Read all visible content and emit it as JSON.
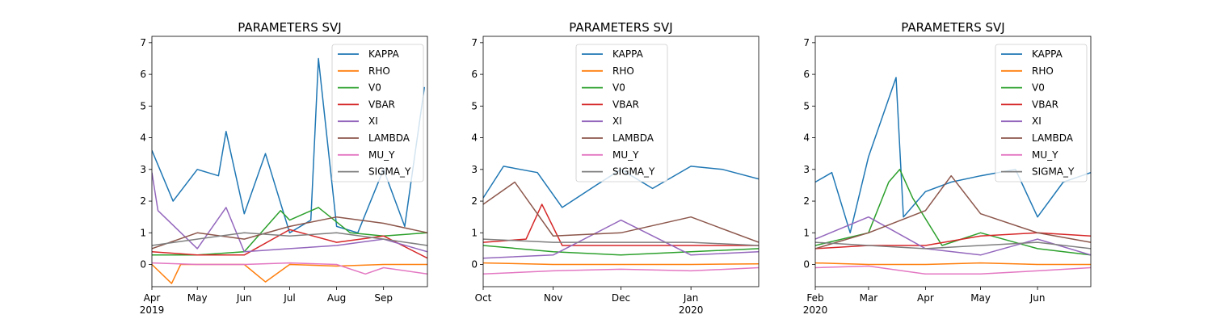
{
  "chart_data": [
    {
      "type": "line",
      "title": "PARAMETERS SVJ",
      "x_range": [
        "2019-04-01",
        "2019-09-30"
      ],
      "ylim": [
        -0.7,
        7.2
      ],
      "y_ticks": [
        0,
        1,
        2,
        3,
        4,
        5,
        6,
        7
      ],
      "x_ticks": [
        {
          "label": "Apr",
          "sub": "2019",
          "date": "2019-04-01"
        },
        {
          "label": "May",
          "sub": "",
          "date": "2019-05-01"
        },
        {
          "label": "Jun",
          "sub": "",
          "date": "2019-06-01"
        },
        {
          "label": "Jul",
          "sub": "",
          "date": "2019-07-01"
        },
        {
          "label": "Aug",
          "sub": "",
          "date": "2019-08-01"
        },
        {
          "label": "Sep",
          "sub": "",
          "date": "2019-09-01"
        }
      ],
      "legend_position": "upper-right",
      "grid": false,
      "series": [
        {
          "name": "KAPPA",
          "color": "#1f77b4",
          "x": [
            "2019-04-01",
            "2019-04-15",
            "2019-05-01",
            "2019-05-15",
            "2019-05-20",
            "2019-06-01",
            "2019-06-15",
            "2019-07-01",
            "2019-07-15",
            "2019-07-20",
            "2019-08-01",
            "2019-08-15",
            "2019-09-01",
            "2019-09-15",
            "2019-09-28"
          ],
          "y": [
            3.6,
            2.0,
            3.0,
            2.8,
            4.2,
            1.6,
            3.5,
            1.0,
            1.4,
            6.5,
            1.2,
            1.0,
            3.0,
            1.2,
            5.6
          ]
        },
        {
          "name": "RHO",
          "color": "#ff7f0e",
          "x": [
            "2019-04-01",
            "2019-04-14",
            "2019-04-20",
            "2019-06-01",
            "2019-06-15",
            "2019-07-01",
            "2019-08-01",
            "2019-09-01",
            "2019-09-30"
          ],
          "y": [
            0.0,
            -0.6,
            0.0,
            0.0,
            -0.55,
            0.0,
            -0.05,
            0.0,
            0.0
          ]
        },
        {
          "name": "V0",
          "color": "#2ca02c",
          "x": [
            "2019-04-01",
            "2019-05-01",
            "2019-06-01",
            "2019-06-25",
            "2019-07-01",
            "2019-07-20",
            "2019-08-10",
            "2019-09-01",
            "2019-09-30"
          ],
          "y": [
            0.3,
            0.3,
            0.4,
            1.7,
            1.4,
            1.8,
            1.0,
            0.9,
            1.0
          ]
        },
        {
          "name": "VBAR",
          "color": "#d62728",
          "x": [
            "2019-04-01",
            "2019-05-01",
            "2019-06-01",
            "2019-07-01",
            "2019-08-01",
            "2019-09-01",
            "2019-09-30"
          ],
          "y": [
            0.4,
            0.3,
            0.3,
            1.1,
            0.7,
            0.9,
            0.2
          ]
        },
        {
          "name": "XI",
          "color": "#9467bd",
          "x": [
            "2019-04-01",
            "2019-04-05",
            "2019-05-01",
            "2019-05-20",
            "2019-06-01",
            "2019-07-01",
            "2019-08-01",
            "2019-09-01",
            "2019-09-30"
          ],
          "y": [
            2.9,
            1.7,
            0.5,
            1.8,
            0.4,
            0.5,
            0.6,
            0.8,
            0.4
          ]
        },
        {
          "name": "LAMBDA",
          "color": "#8c564b",
          "x": [
            "2019-04-01",
            "2019-05-01",
            "2019-06-01",
            "2019-07-01",
            "2019-08-01",
            "2019-09-01",
            "2019-09-30"
          ],
          "y": [
            0.5,
            1.0,
            0.8,
            1.2,
            1.5,
            1.3,
            1.0
          ]
        },
        {
          "name": "MU_Y",
          "color": "#e377c2",
          "x": [
            "2019-04-01",
            "2019-05-01",
            "2019-06-01",
            "2019-07-01",
            "2019-08-01",
            "2019-08-20",
            "2019-09-01",
            "2019-09-30"
          ],
          "y": [
            0.05,
            0.0,
            0.0,
            0.05,
            0.0,
            -0.3,
            -0.1,
            -0.3
          ]
        },
        {
          "name": "SIGMA_Y",
          "color": "#7f7f7f",
          "x": [
            "2019-04-01",
            "2019-05-01",
            "2019-06-01",
            "2019-07-01",
            "2019-08-01",
            "2019-09-01",
            "2019-09-30"
          ],
          "y": [
            0.6,
            0.8,
            1.0,
            0.9,
            1.0,
            0.8,
            0.6
          ]
        }
      ]
    },
    {
      "type": "line",
      "title": "PARAMETERS SVJ",
      "x_range": [
        "2019-10-01",
        "2020-01-31"
      ],
      "ylim": [
        -0.7,
        7.2
      ],
      "y_ticks": [
        0,
        1,
        2,
        3,
        4,
        5,
        6,
        7
      ],
      "x_ticks": [
        {
          "label": "Oct",
          "sub": "",
          "date": "2019-10-01"
        },
        {
          "label": "Nov",
          "sub": "",
          "date": "2019-11-01"
        },
        {
          "label": "Dec",
          "sub": "",
          "date": "2019-12-01"
        },
        {
          "label": "Jan",
          "sub": "2020",
          "date": "2020-01-01"
        }
      ],
      "legend_position": "upper-center",
      "grid": false,
      "series": [
        {
          "name": "KAPPA",
          "color": "#1f77b4",
          "x": [
            "2019-10-01",
            "2019-10-10",
            "2019-10-25",
            "2019-11-05",
            "2019-11-20",
            "2019-12-01",
            "2019-12-15",
            "2020-01-01",
            "2020-01-15",
            "2020-01-31"
          ],
          "y": [
            2.1,
            3.1,
            2.9,
            1.8,
            2.5,
            3.0,
            2.4,
            3.1,
            3.0,
            2.7
          ]
        },
        {
          "name": "RHO",
          "color": "#ff7f0e",
          "x": [
            "2019-10-01",
            "2019-11-01",
            "2019-12-01",
            "2020-01-01",
            "2020-01-31"
          ],
          "y": [
            0.05,
            0.0,
            0.0,
            0.0,
            0.02
          ]
        },
        {
          "name": "V0",
          "color": "#2ca02c",
          "x": [
            "2019-10-01",
            "2019-11-01",
            "2019-12-01",
            "2020-01-01",
            "2020-01-31"
          ],
          "y": [
            0.6,
            0.4,
            0.3,
            0.4,
            0.5
          ]
        },
        {
          "name": "VBAR",
          "color": "#d62728",
          "x": [
            "2019-10-01",
            "2019-10-20",
            "2019-10-27",
            "2019-11-05",
            "2019-12-01",
            "2020-01-01",
            "2020-01-31"
          ],
          "y": [
            0.7,
            0.8,
            1.9,
            0.6,
            0.6,
            0.6,
            0.6
          ]
        },
        {
          "name": "XI",
          "color": "#9467bd",
          "x": [
            "2019-10-01",
            "2019-11-01",
            "2019-12-01",
            "2020-01-01",
            "2020-01-31"
          ],
          "y": [
            0.2,
            0.3,
            1.4,
            0.3,
            0.4
          ]
        },
        {
          "name": "LAMBDA",
          "color": "#8c564b",
          "x": [
            "2019-10-01",
            "2019-10-15",
            "2019-11-01",
            "2019-12-01",
            "2020-01-01",
            "2020-01-31"
          ],
          "y": [
            1.9,
            2.6,
            0.9,
            1.0,
            1.5,
            0.7
          ]
        },
        {
          "name": "MU_Y",
          "color": "#e377c2",
          "x": [
            "2019-10-01",
            "2019-11-01",
            "2019-12-01",
            "2020-01-01",
            "2020-01-31"
          ],
          "y": [
            -0.3,
            -0.2,
            -0.15,
            -0.2,
            -0.1
          ]
        },
        {
          "name": "SIGMA_Y",
          "color": "#7f7f7f",
          "x": [
            "2019-10-01",
            "2019-11-01",
            "2019-12-01",
            "2020-01-01",
            "2020-01-31"
          ],
          "y": [
            0.8,
            0.7,
            0.7,
            0.7,
            0.6
          ]
        }
      ]
    },
    {
      "type": "line",
      "title": "PARAMETERS SVJ",
      "x_range": [
        "2020-02-01",
        "2020-06-30"
      ],
      "ylim": [
        -0.7,
        7.2
      ],
      "y_ticks": [
        0,
        1,
        2,
        3,
        4,
        5,
        6,
        7
      ],
      "x_ticks": [
        {
          "label": "Feb",
          "sub": "2020",
          "date": "2020-02-01"
        },
        {
          "label": "Mar",
          "sub": "",
          "date": "2020-03-01"
        },
        {
          "label": "Apr",
          "sub": "",
          "date": "2020-04-01"
        },
        {
          "label": "May",
          "sub": "",
          "date": "2020-05-01"
        },
        {
          "label": "Jun",
          "sub": "",
          "date": "2020-06-01"
        }
      ],
      "legend_position": "upper-right",
      "grid": false,
      "series": [
        {
          "name": "KAPPA",
          "color": "#1f77b4",
          "x": [
            "2020-02-01",
            "2020-02-10",
            "2020-02-20",
            "2020-03-01",
            "2020-03-16",
            "2020-03-20",
            "2020-04-01",
            "2020-04-15",
            "2020-05-01",
            "2020-05-20",
            "2020-06-01",
            "2020-06-15",
            "2020-06-30"
          ],
          "y": [
            2.6,
            2.9,
            1.0,
            3.4,
            5.9,
            1.5,
            2.3,
            2.6,
            2.8,
            3.0,
            1.5,
            2.6,
            2.9
          ]
        },
        {
          "name": "RHO",
          "color": "#ff7f0e",
          "x": [
            "2020-02-01",
            "2020-03-01",
            "2020-04-01",
            "2020-05-01",
            "2020-06-01",
            "2020-06-30"
          ],
          "y": [
            0.05,
            0.0,
            0.0,
            0.05,
            0.0,
            0.0
          ]
        },
        {
          "name": "V0",
          "color": "#2ca02c",
          "x": [
            "2020-02-01",
            "2020-03-01",
            "2020-03-12",
            "2020-03-18",
            "2020-03-25",
            "2020-04-10",
            "2020-05-01",
            "2020-06-01",
            "2020-06-30"
          ],
          "y": [
            0.6,
            1.0,
            2.6,
            3.0,
            2.1,
            0.6,
            1.0,
            0.5,
            0.3
          ]
        },
        {
          "name": "VBAR",
          "color": "#d62728",
          "x": [
            "2020-02-01",
            "2020-03-01",
            "2020-04-01",
            "2020-05-01",
            "2020-06-01",
            "2020-06-30"
          ],
          "y": [
            0.5,
            0.6,
            0.6,
            0.9,
            1.0,
            0.9
          ]
        },
        {
          "name": "XI",
          "color": "#9467bd",
          "x": [
            "2020-02-01",
            "2020-03-01",
            "2020-04-01",
            "2020-05-01",
            "2020-06-01",
            "2020-06-30"
          ],
          "y": [
            0.8,
            1.5,
            0.5,
            0.3,
            0.8,
            0.3
          ]
        },
        {
          "name": "LAMBDA",
          "color": "#8c564b",
          "x": [
            "2020-02-01",
            "2020-03-01",
            "2020-04-01",
            "2020-04-15",
            "2020-05-01",
            "2020-06-01",
            "2020-06-30"
          ],
          "y": [
            0.5,
            1.0,
            1.7,
            2.8,
            1.6,
            1.0,
            0.7
          ]
        },
        {
          "name": "MU_Y",
          "color": "#e377c2",
          "x": [
            "2020-02-01",
            "2020-03-01",
            "2020-04-01",
            "2020-05-01",
            "2020-06-01",
            "2020-06-30"
          ],
          "y": [
            -0.1,
            -0.05,
            -0.3,
            -0.3,
            -0.2,
            -0.1
          ]
        },
        {
          "name": "SIGMA_Y",
          "color": "#7f7f7f",
          "x": [
            "2020-02-01",
            "2020-03-01",
            "2020-04-01",
            "2020-05-01",
            "2020-06-01",
            "2020-06-30"
          ],
          "y": [
            0.7,
            0.6,
            0.5,
            0.6,
            0.7,
            0.5
          ]
        }
      ]
    }
  ]
}
